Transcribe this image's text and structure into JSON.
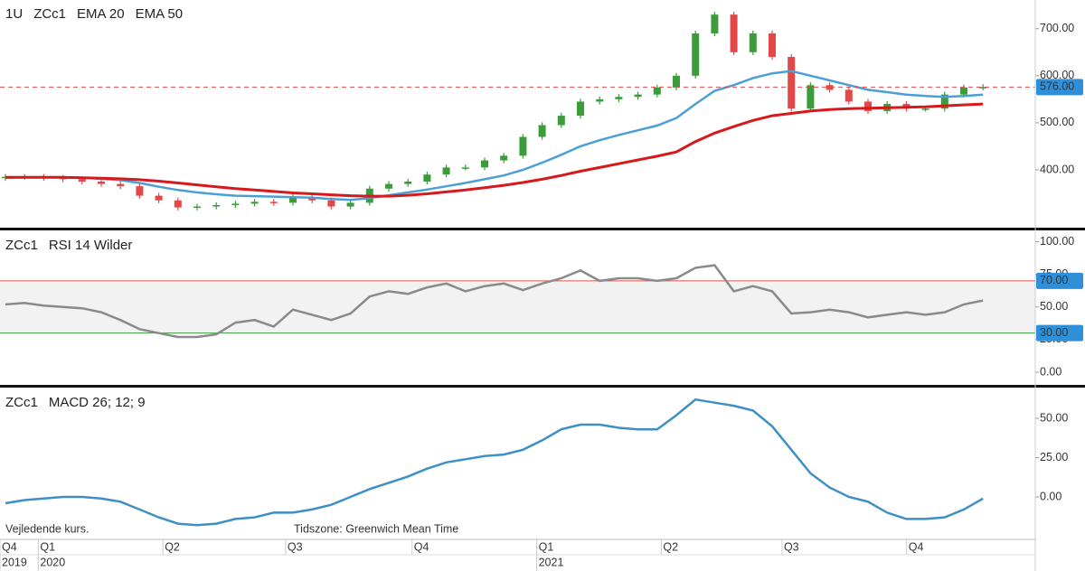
{
  "chart_data": [
    {
      "type": "candlestick",
      "interval": "1U",
      "symbol": "ZCc1",
      "open": [
        383,
        385,
        385,
        383,
        380,
        375,
        370,
        365,
        345,
        335,
        320,
        322,
        325,
        328,
        332,
        330,
        342,
        335,
        322,
        330,
        360,
        370,
        375,
        390,
        405,
        405,
        420,
        430,
        470,
        495,
        515,
        545,
        550,
        555,
        560,
        575,
        600,
        690,
        730,
        650,
        690,
        640,
        530,
        580,
        570,
        545,
        525,
        540,
        530,
        530,
        560,
        575
      ],
      "high": [
        391,
        391,
        391,
        389,
        386,
        381,
        376,
        371,
        351,
        341,
        328,
        331,
        334,
        338,
        338,
        348,
        348,
        341,
        336,
        366,
        376,
        381,
        396,
        411,
        411,
        426,
        436,
        476,
        501,
        521,
        551,
        556,
        561,
        566,
        581,
        606,
        696,
        736,
        736,
        696,
        696,
        646,
        586,
        586,
        576,
        551,
        546,
        546,
        536,
        566,
        581,
        582
      ],
      "low": [
        377,
        379,
        377,
        374,
        369,
        364,
        359,
        339,
        329,
        314,
        314,
        316,
        319,
        322,
        324,
        324,
        329,
        316,
        316,
        324,
        354,
        364,
        369,
        384,
        399,
        399,
        414,
        424,
        464,
        489,
        509,
        539,
        544,
        549,
        554,
        569,
        594,
        684,
        644,
        644,
        634,
        524,
        524,
        564,
        539,
        519,
        519,
        524,
        524,
        524,
        554,
        569
      ],
      "close": [
        385,
        385,
        383,
        380,
        375,
        370,
        365,
        345,
        335,
        320,
        322,
        325,
        328,
        332,
        330,
        342,
        335,
        322,
        330,
        360,
        370,
        375,
        390,
        405,
        405,
        420,
        430,
        470,
        495,
        515,
        545,
        550,
        555,
        560,
        575,
        600,
        690,
        730,
        650,
        690,
        640,
        530,
        580,
        570,
        545,
        525,
        540,
        530,
        530,
        560,
        575,
        576
      ],
      "up_color": "#3a9d3a",
      "down_color": "#e24848",
      "series": [
        {
          "name": "EMA 20",
          "color": "#4b9fd5",
          "values": [
            383,
            384,
            384,
            384,
            383,
            381,
            378,
            372,
            364,
            357,
            352,
            348,
            345,
            344,
            343,
            342,
            341,
            338,
            336,
            340,
            346,
            352,
            358,
            365,
            372,
            380,
            388,
            400,
            415,
            432,
            450,
            463,
            474,
            484,
            494,
            510,
            540,
            568,
            580,
            595,
            605,
            610,
            600,
            590,
            580,
            570,
            565,
            560,
            557,
            555,
            557,
            560
          ]
        },
        {
          "name": "EMA 50",
          "color": "#d7191c",
          "values": [
            384,
            384,
            384,
            384,
            383,
            382,
            381,
            379,
            376,
            372,
            368,
            364,
            360,
            357,
            354,
            351,
            349,
            347,
            345,
            344,
            344,
            346,
            349,
            353,
            357,
            362,
            367,
            373,
            380,
            388,
            397,
            405,
            413,
            421,
            429,
            438,
            460,
            478,
            492,
            505,
            515,
            520,
            525,
            528,
            530,
            531,
            532,
            533,
            534,
            536,
            538,
            540
          ]
        }
      ],
      "last_price": {
        "value": 576,
        "label": "576.00",
        "color": "#2f8fd8"
      },
      "ylim": [
        277,
        761
      ],
      "yticks": [
        {
          "value": 400,
          "label": "400.00"
        },
        {
          "value": 500,
          "label": "500.00"
        },
        {
          "value": 600,
          "label": "600.00"
        },
        {
          "value": 700,
          "label": "700.00"
        }
      ]
    },
    {
      "type": "line",
      "symbol": "ZCc1",
      "series": [
        {
          "name": "RSI 14 Wilder",
          "color": "#8a8a8a",
          "values": [
            52,
            53,
            51,
            50,
            49,
            46,
            40,
            33,
            30,
            27,
            27,
            29,
            38,
            40,
            35,
            48,
            44,
            40,
            45,
            58,
            62,
            60,
            65,
            68,
            62,
            66,
            68,
            63,
            68,
            72,
            78,
            70,
            72,
            72,
            70,
            72,
            80,
            82,
            62,
            66,
            62,
            45,
            46,
            48,
            46,
            42,
            44,
            46,
            44,
            46,
            52,
            55
          ]
        }
      ],
      "levels": [
        {
          "value": 70,
          "label": "70.00",
          "color": "#d9534f"
        },
        {
          "value": 30,
          "label": "30.00",
          "color": "#3c9a3c"
        }
      ],
      "ylim": [
        -9,
        108
      ],
      "yticks": [
        {
          "value": 0,
          "label": "0.00"
        },
        {
          "value": 25,
          "label": "25.00"
        },
        {
          "value": 50,
          "label": "50.00"
        },
        {
          "value": 75,
          "label": "75.00"
        },
        {
          "value": 100,
          "label": "100.00"
        }
      ]
    },
    {
      "type": "line",
      "symbol": "ZCc1",
      "series": [
        {
          "name": "MACD 26; 12; 9",
          "color": "#3d8fc4",
          "values": [
            -4,
            -2,
            -1,
            0,
            0,
            -1,
            -3,
            -8,
            -13,
            -17,
            -18,
            -17,
            -14,
            -13,
            -10,
            -10,
            -8,
            -5,
            0,
            5,
            9,
            13,
            18,
            22,
            24,
            26,
            27,
            30,
            36,
            43,
            46,
            46,
            44,
            43,
            43,
            52,
            62,
            60,
            58,
            55,
            45,
            30,
            15,
            6,
            0,
            -3,
            -10,
            -14,
            -14,
            -13,
            -8,
            -1
          ]
        }
      ],
      "ylim": [
        -27,
        69
      ],
      "yticks": [
        {
          "value": 0,
          "label": "0.00"
        },
        {
          "value": 25,
          "label": "25.00"
        },
        {
          "value": 50,
          "label": "50.00"
        }
      ]
    }
  ],
  "x_axis": {
    "xticks": [
      {
        "value": 0,
        "label": "Q4"
      },
      {
        "value": 2,
        "label": "Q1"
      },
      {
        "value": 8.5,
        "label": "Q2"
      },
      {
        "value": 14.9,
        "label": "Q3"
      },
      {
        "value": 21.5,
        "label": "Q4"
      },
      {
        "value": 28,
        "label": "Q1"
      },
      {
        "value": 34.5,
        "label": "Q2"
      },
      {
        "value": 40.8,
        "label": "Q3"
      },
      {
        "value": 47.3,
        "label": "Q4"
      }
    ],
    "year_ticks": [
      {
        "value": 0,
        "label": "2019"
      },
      {
        "value": 2,
        "label": "2020"
      },
      {
        "value": 28,
        "label": "2021"
      }
    ]
  },
  "notes": [
    "Vejledende kurs.",
    "Tidszone: Greenwich Mean Time"
  ]
}
